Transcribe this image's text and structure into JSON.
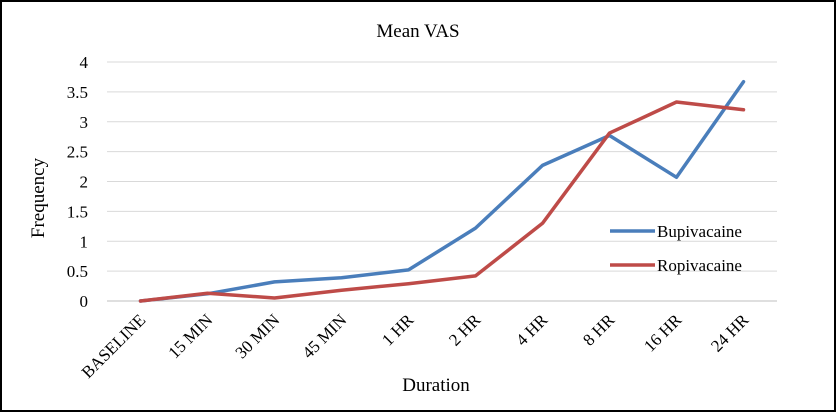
{
  "chart_data": {
    "type": "line",
    "title": "Mean VAS",
    "xlabel": "Duration",
    "ylabel": "Frequency",
    "ylim": [
      0,
      4
    ],
    "yticks": [
      "0",
      "0.5",
      "1",
      "1.5",
      "2",
      "2.5",
      "3",
      "3.5",
      "4"
    ],
    "grid": true,
    "legend_position": "right",
    "categories": [
      "BASELINE",
      "15 MIN",
      "30 MIN",
      "45 MIN",
      "1 HR",
      "2 HR",
      "4 HR",
      "8 HR",
      "16 HR",
      "24 HR"
    ],
    "series": [
      {
        "name": "Bupivacaine",
        "color": "#4A7EBB",
        "values": [
          0,
          0.12,
          0.32,
          0.39,
          0.52,
          1.22,
          2.27,
          2.77,
          2.07,
          3.67
        ]
      },
      {
        "name": "Ropivacaine",
        "color": "#BE4B48",
        "values": [
          0,
          0.13,
          0.05,
          0.18,
          0.29,
          0.42,
          1.3,
          2.81,
          3.33,
          3.2
        ]
      }
    ]
  }
}
